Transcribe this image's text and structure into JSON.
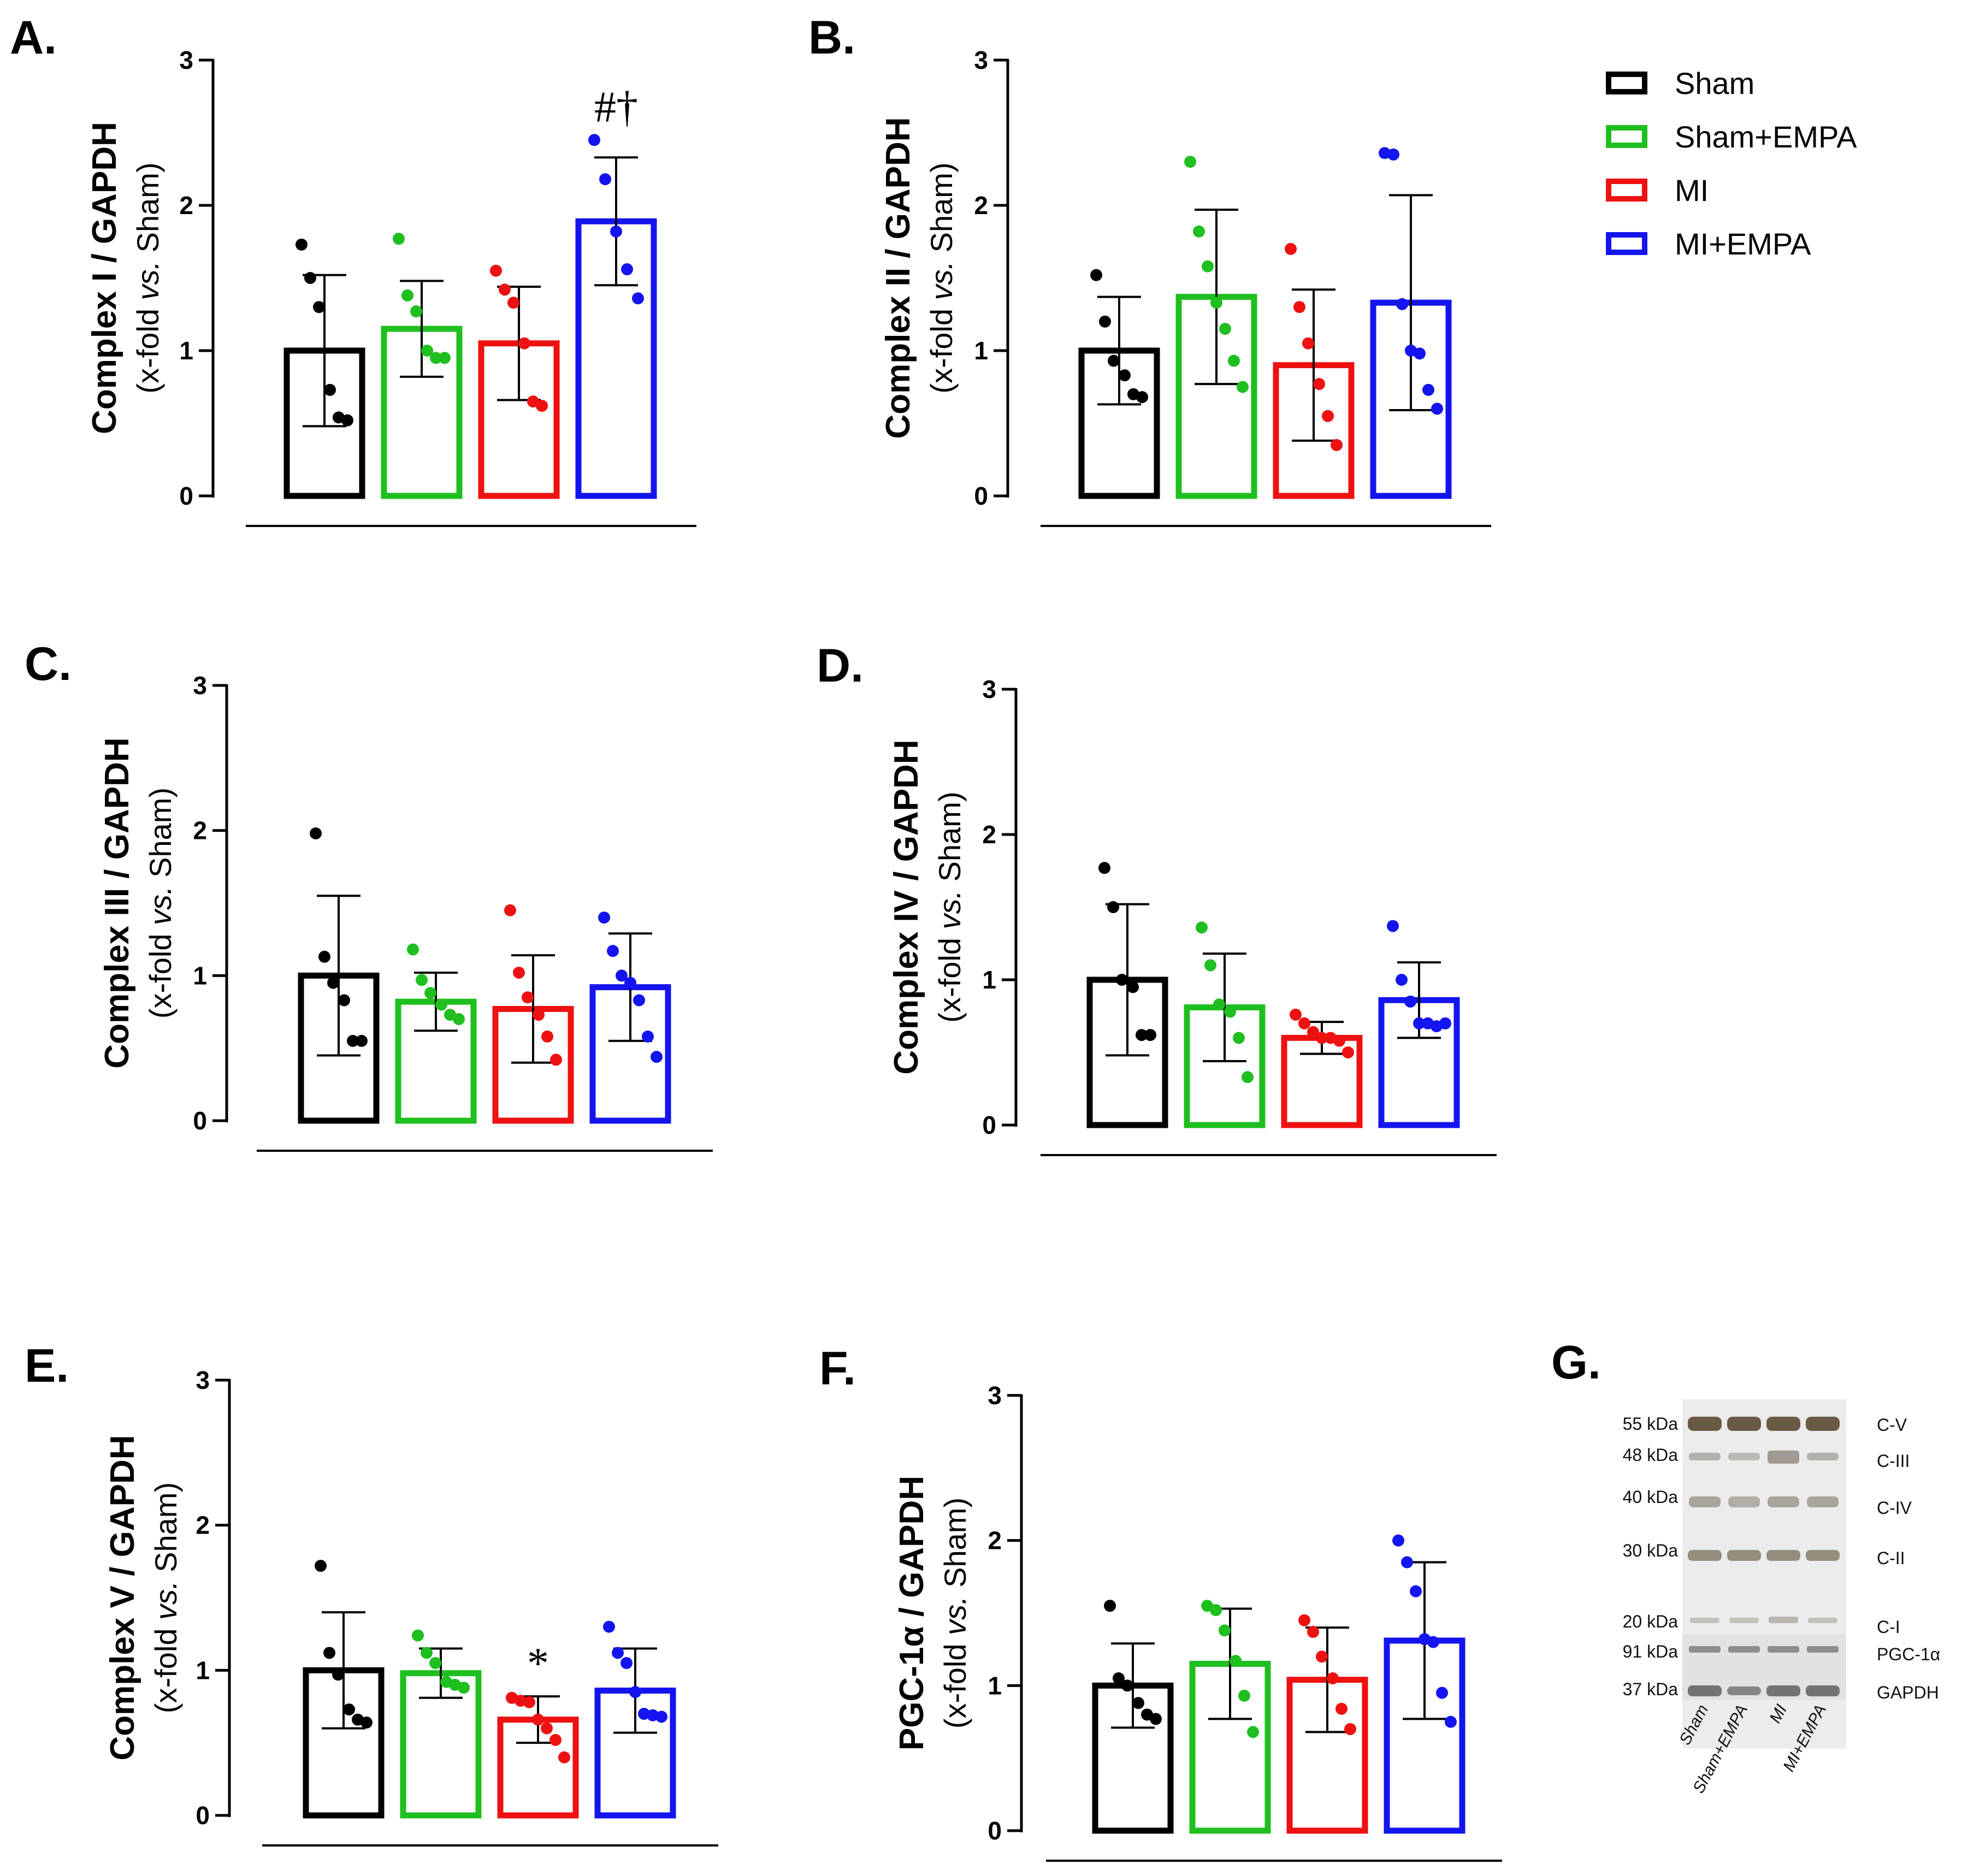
{
  "groups": [
    "Sham",
    "Sham+EMPA",
    "MI",
    "MI+EMPA"
  ],
  "colors": {
    "Sham": "#000000",
    "Sham+EMPA": "#1fbf1f",
    "MI": "#ee1111",
    "MI+EMPA": "#1414ee"
  },
  "legend": {
    "items": [
      "Sham",
      "Sham+EMPA",
      "MI",
      "MI+EMPA"
    ]
  },
  "chart_data": [
    {
      "type": "bar",
      "letter": "A.",
      "ylabel_main": "Complex I / GAPDH",
      "ylabel_sub_pre": "(x-fold ",
      "ylabel_sub_italic": "vs.",
      "ylabel_sub_post": " Sham)",
      "ylim": [
        0,
        3
      ],
      "yticks": [
        "0",
        "1",
        "2",
        "3"
      ],
      "categories": [
        "Sham",
        "Sham+EMPA",
        "MI",
        "MI+EMPA"
      ],
      "values": [
        1.0,
        1.15,
        1.05,
        1.89
      ],
      "sd": [
        0.52,
        0.33,
        0.39,
        0.44
      ],
      "points": [
        [
          1.73,
          1.5,
          1.3,
          0.73,
          0.54,
          0.52
        ],
        [
          1.77,
          1.38,
          1.27,
          1.0,
          0.95,
          0.95
        ],
        [
          1.55,
          1.42,
          1.33,
          1.05,
          0.65,
          0.62
        ],
        [
          2.45,
          2.18,
          1.82,
          1.56,
          1.36
        ]
      ],
      "annotations": [
        {
          "group": 3,
          "text": "#†"
        }
      ]
    },
    {
      "type": "bar",
      "letter": "B.",
      "ylabel_main": "Complex II / GAPDH",
      "ylabel_sub_pre": "(x-fold ",
      "ylabel_sub_italic": "vs.",
      "ylabel_sub_post": " Sham)",
      "ylim": [
        0,
        3
      ],
      "yticks": [
        "0",
        "1",
        "2",
        "3"
      ],
      "categories": [
        "Sham",
        "Sham+EMPA",
        "MI",
        "MI+EMPA"
      ],
      "values": [
        1.0,
        1.37,
        0.9,
        1.33
      ],
      "sd": [
        0.37,
        0.6,
        0.52,
        0.74
      ],
      "points": [
        [
          1.52,
          1.2,
          0.93,
          0.83,
          0.7,
          0.68
        ],
        [
          2.3,
          1.82,
          1.58,
          1.33,
          1.15,
          0.93,
          0.75
        ],
        [
          1.7,
          1.3,
          1.05,
          0.77,
          0.55,
          0.35
        ],
        [
          2.36,
          2.35,
          1.32,
          1.0,
          0.98,
          0.73,
          0.6
        ]
      ],
      "annotations": []
    },
    {
      "type": "bar",
      "letter": "C.",
      "ylabel_main": "Complex III / GAPDH",
      "ylabel_sub_pre": "(x-fold ",
      "ylabel_sub_italic": "vs.",
      "ylabel_sub_post": " Sham)",
      "ylim": [
        0,
        3
      ],
      "yticks": [
        "0",
        "1",
        "2",
        "3"
      ],
      "categories": [
        "Sham",
        "Sham+EMPA",
        "MI",
        "MI+EMPA"
      ],
      "values": [
        1.0,
        0.82,
        0.77,
        0.92
      ],
      "sd": [
        0.55,
        0.2,
        0.37,
        0.37
      ],
      "points": [
        [
          1.98,
          1.13,
          0.95,
          0.83,
          0.55,
          0.55
        ],
        [
          1.18,
          0.97,
          0.88,
          0.8,
          0.73,
          0.7
        ],
        [
          1.45,
          1.02,
          0.85,
          0.73,
          0.58,
          0.42
        ],
        [
          1.4,
          1.17,
          1.0,
          0.95,
          0.83,
          0.58,
          0.44
        ]
      ],
      "annotations": []
    },
    {
      "type": "bar",
      "letter": "D.",
      "ylabel_main": "Complex IV / GAPDH",
      "ylabel_sub_pre": "(x-fold ",
      "ylabel_sub_italic": "vs.",
      "ylabel_sub_post": " Sham)",
      "ylim": [
        0,
        3
      ],
      "yticks": [
        "0",
        "1",
        "2",
        "3"
      ],
      "categories": [
        "Sham",
        "Sham+EMPA",
        "MI",
        "MI+EMPA"
      ],
      "values": [
        1.0,
        0.81,
        0.6,
        0.86
      ],
      "sd": [
        0.52,
        0.37,
        0.11,
        0.26
      ],
      "points": [
        [
          1.77,
          1.5,
          1.0,
          0.95,
          0.62,
          0.62
        ],
        [
          1.36,
          1.1,
          0.83,
          0.78,
          0.6,
          0.33
        ],
        [
          0.76,
          0.7,
          0.64,
          0.6,
          0.6,
          0.58,
          0.5
        ],
        [
          1.37,
          1.0,
          0.85,
          0.7,
          0.7,
          0.68,
          0.7
        ]
      ],
      "annotations": []
    },
    {
      "type": "bar",
      "letter": "E.",
      "ylabel_main": "Complex V / GAPDH",
      "ylabel_sub_pre": "(x-fold ",
      "ylabel_sub_italic": "vs.",
      "ylabel_sub_post": " Sham)",
      "ylim": [
        0,
        3
      ],
      "yticks": [
        "0",
        "1",
        "2",
        "3"
      ],
      "categories": [
        "Sham",
        "Sham+EMPA",
        "MI",
        "MI+EMPA"
      ],
      "values": [
        1.0,
        0.98,
        0.66,
        0.86
      ],
      "sd": [
        0.4,
        0.17,
        0.16,
        0.29
      ],
      "points": [
        [
          1.72,
          1.12,
          0.97,
          0.73,
          0.66,
          0.64
        ],
        [
          1.24,
          1.12,
          1.05,
          0.92,
          0.9,
          0.88
        ],
        [
          0.81,
          0.79,
          0.78,
          0.66,
          0.6,
          0.52,
          0.4
        ],
        [
          1.3,
          1.12,
          1.05,
          0.85,
          0.7,
          0.69,
          0.68
        ]
      ],
      "annotations": [
        {
          "group": 2,
          "text": "*"
        }
      ]
    },
    {
      "type": "bar",
      "letter": "F.",
      "ylabel_main": "PGC-1α / GAPDH",
      "ylabel_sub_pre": "(x-fold ",
      "ylabel_sub_italic": "vs.",
      "ylabel_sub_post": " Sham)",
      "ylim": [
        0,
        3
      ],
      "yticks": [
        "0",
        "1",
        "2",
        "3"
      ],
      "categories": [
        "Sham",
        "Sham+EMPA",
        "MI",
        "MI+EMPA"
      ],
      "values": [
        1.0,
        1.15,
        1.04,
        1.31
      ],
      "sd": [
        0.29,
        0.38,
        0.36,
        0.54
      ],
      "points": [
        [
          1.55,
          1.05,
          1.0,
          0.88,
          0.8,
          0.77
        ],
        [
          1.55,
          1.52,
          1.38,
          1.17,
          0.93,
          0.68
        ],
        [
          1.45,
          1.37,
          1.2,
          1.05,
          0.84,
          0.7
        ],
        [
          2.0,
          1.85,
          1.65,
          1.32,
          1.3,
          0.95,
          0.75
        ]
      ],
      "annotations": []
    }
  ],
  "blot": {
    "letter": "G.",
    "markers": [
      "55 kDa",
      "48 kDa",
      "40 kDa",
      "30 kDa",
      "20 kDa",
      "91 kDa",
      "37 kDa"
    ],
    "bands": [
      "C-V",
      "C-III",
      "C-IV",
      "C-II",
      "C-I",
      "PGC-1α",
      "GAPDH"
    ],
    "lanes": [
      "Sham",
      "Sham+EMPA",
      "MI",
      "MI+EMPA"
    ]
  }
}
